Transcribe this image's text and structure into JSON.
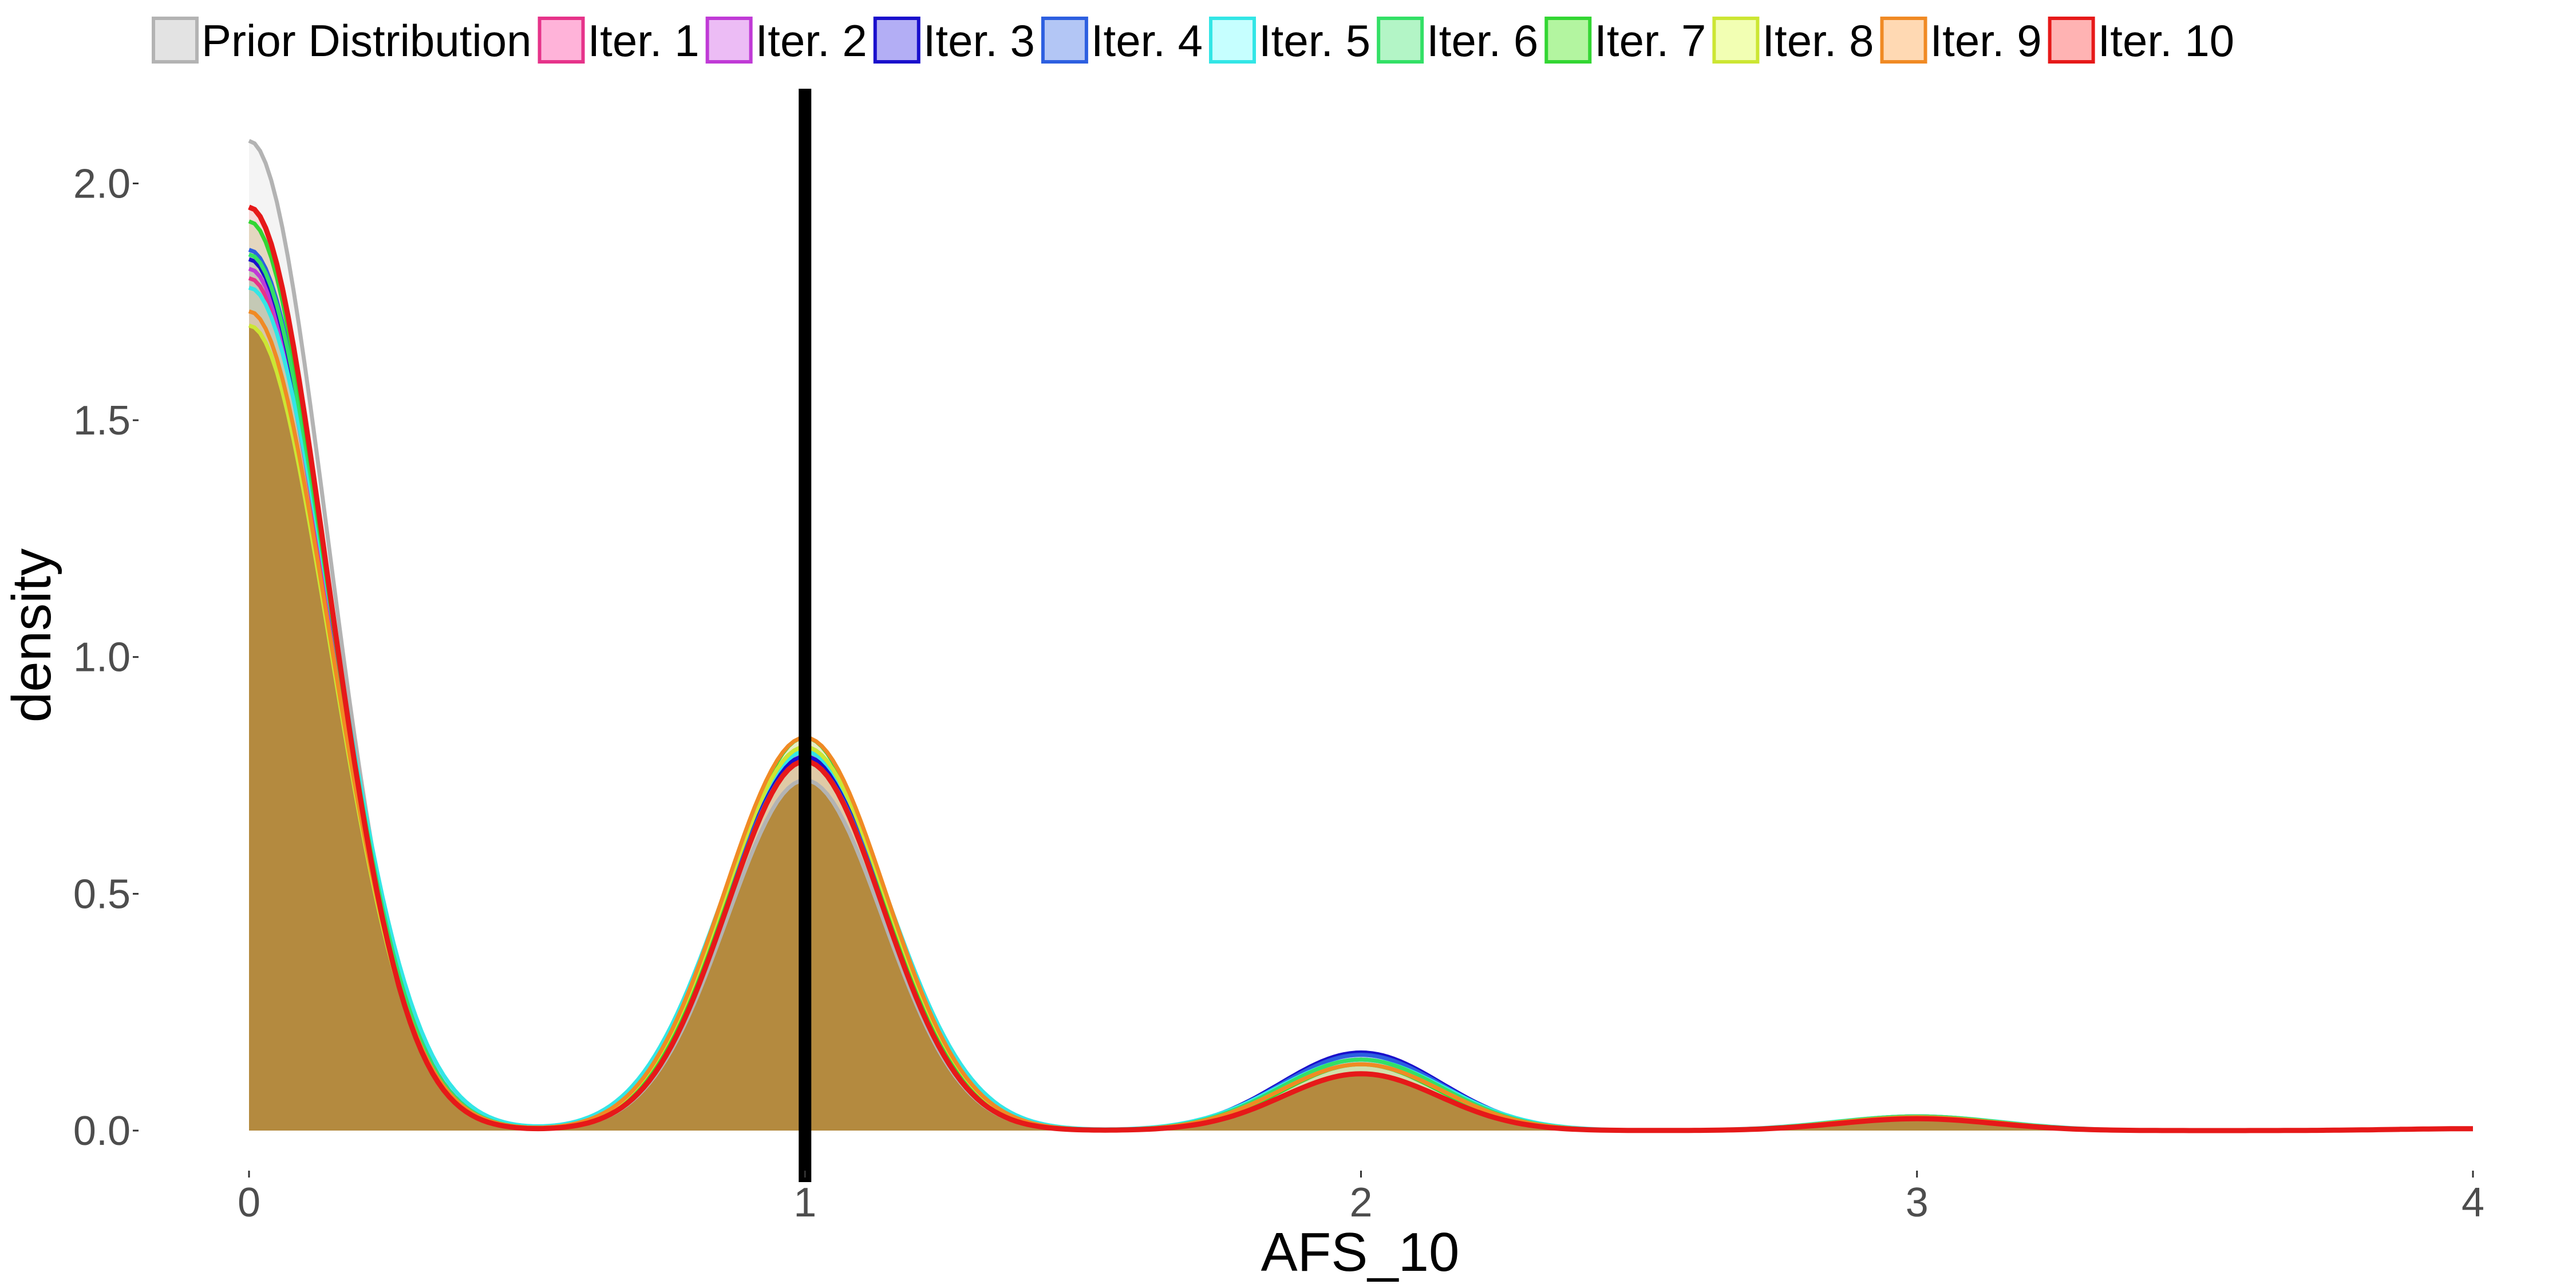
{
  "chart_data": {
    "type": "area",
    "xlabel": "AFS_10",
    "ylabel": "density",
    "xlim": [
      0,
      4
    ],
    "ylim": [
      0,
      2.2
    ],
    "x_ticks": [
      0,
      1,
      2,
      3,
      4
    ],
    "x_tick_labels": [
      "0",
      "1",
      "2",
      "3",
      "4"
    ],
    "y_ticks": [
      0,
      0.5,
      1,
      1.5,
      2
    ],
    "y_tick_labels": [
      "0.0",
      "0.5",
      "1.0",
      "1.5",
      "2.0"
    ],
    "grid": false,
    "legend_position": "top",
    "vline": {
      "x": 1,
      "color": "#000000"
    },
    "series": [
      {
        "name": "Prior Distribution",
        "line": "#b3b3b3",
        "fill": "#d9d9d9",
        "peaks": [
          2.09,
          0.74,
          0.14,
          0.025,
          0.003
        ],
        "width": 0.14
      },
      {
        "name": "Iter. 1",
        "line": "#e6338a",
        "fill": "#ff99cc",
        "peaks": [
          1.8,
          0.8,
          0.15,
          0.03,
          0.004
        ],
        "width": 0.145
      },
      {
        "name": "Iter. 2",
        "line": "#c03ad6",
        "fill": "#e6a6f2",
        "peaks": [
          1.82,
          0.79,
          0.15,
          0.03,
          0.004
        ],
        "width": 0.145
      },
      {
        "name": "Iter. 3",
        "line": "#1a0fcc",
        "fill": "#9a93f2",
        "peaks": [
          1.84,
          0.79,
          0.165,
          0.028,
          0.004
        ],
        "width": 0.145
      },
      {
        "name": "Iter. 4",
        "line": "#2d5fe0",
        "fill": "#99b3f2",
        "peaks": [
          1.86,
          0.78,
          0.16,
          0.028,
          0.004
        ],
        "width": 0.145
      },
      {
        "name": "Iter. 5",
        "line": "#33e6e6",
        "fill": "#b3ffff",
        "peaks": [
          1.78,
          0.8,
          0.15,
          0.03,
          0.004
        ],
        "width": 0.15
      },
      {
        "name": "Iter. 6",
        "line": "#33e066",
        "fill": "#99f2b3",
        "peaks": [
          1.85,
          0.81,
          0.15,
          0.03,
          0.004
        ],
        "width": 0.145
      },
      {
        "name": "Iter. 7",
        "line": "#33d633",
        "fill": "#99f280",
        "peaks": [
          1.92,
          0.83,
          0.14,
          0.025,
          0.004
        ],
        "width": 0.14
      },
      {
        "name": "Iter. 8",
        "line": "#cce633",
        "fill": "#eeff99",
        "peaks": [
          1.7,
          0.81,
          0.14,
          0.028,
          0.004
        ],
        "width": 0.145
      },
      {
        "name": "Iter. 9",
        "line": "#f08a24",
        "fill": "#ffcc99",
        "peaks": [
          1.73,
          0.83,
          0.14,
          0.028,
          0.004
        ],
        "width": 0.145
      },
      {
        "name": "Iter. 10",
        "line": "#e61919",
        "fill": "#ff9999",
        "peaks": [
          1.95,
          0.78,
          0.12,
          0.025,
          0.004
        ],
        "width": 0.14
      }
    ]
  }
}
